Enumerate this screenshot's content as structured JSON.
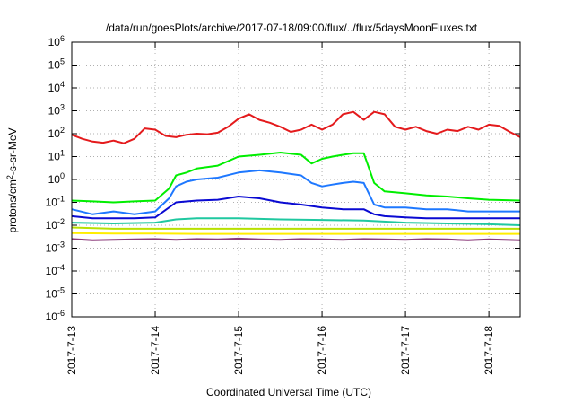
{
  "chart_data": {
    "type": "line",
    "title": "/data/run/goesPlots/archive/2017-07-18/09:00/flux/../flux/5daysMoonFluxes.txt",
    "xlabel": "Coordinated Universal Time (UTC)",
    "ylabel_base": "protons/cm",
    "ylabel_exp": "2",
    "ylabel_rest": "-s-sr-MeV",
    "yscale": "log",
    "ylim": [
      1e-06,
      1000000.0
    ],
    "xlim": [
      "2017-07-13T00:00",
      "2017-07-18T09:00"
    ],
    "grid": true,
    "y_ticks": [
      {
        "exp": "-6",
        "value": 1e-06
      },
      {
        "exp": "-5",
        "value": 1e-05
      },
      {
        "exp": "-4",
        "value": 0.0001
      },
      {
        "exp": "-3",
        "value": 0.001
      },
      {
        "exp": "-2",
        "value": 0.01
      },
      {
        "exp": "-1",
        "value": 0.1
      },
      {
        "exp": "0",
        "value": 1
      },
      {
        "exp": "1",
        "value": 10
      },
      {
        "exp": "2",
        "value": 100
      },
      {
        "exp": "3",
        "value": 1000
      },
      {
        "exp": "4",
        "value": 10000.0
      },
      {
        "exp": "5",
        "value": 100000.0
      },
      {
        "exp": "6",
        "value": 1000000.0
      }
    ],
    "y_tick_base": "10",
    "x_ticks": [
      {
        "label": "2017-7-13",
        "value": "2017-07-13T00:00"
      },
      {
        "label": "2017-7-14",
        "value": "2017-07-14T00:00"
      },
      {
        "label": "2017-7-15",
        "value": "2017-07-15T00:00"
      },
      {
        "label": "2017-7-16",
        "value": "2017-07-16T00:00"
      },
      {
        "label": "2017-7-17",
        "value": "2017-07-17T00:00"
      },
      {
        "label": "2017-7-18",
        "value": "2017-07-18T00:00"
      }
    ],
    "series": [
      {
        "color": "#e41a1c",
        "x": [
          "2017-07-13T00:00",
          "2017-07-13T03:00",
          "2017-07-13T06:00",
          "2017-07-13T09:00",
          "2017-07-13T12:00",
          "2017-07-13T15:00",
          "2017-07-13T18:00",
          "2017-07-13T21:00",
          "2017-07-14T00:00",
          "2017-07-14T03:00",
          "2017-07-14T06:00",
          "2017-07-14T09:00",
          "2017-07-14T12:00",
          "2017-07-14T15:00",
          "2017-07-14T18:00",
          "2017-07-14T21:00",
          "2017-07-15T00:00",
          "2017-07-15T03:00",
          "2017-07-15T06:00",
          "2017-07-15T09:00",
          "2017-07-15T12:00",
          "2017-07-15T15:00",
          "2017-07-15T18:00",
          "2017-07-15T21:00",
          "2017-07-16T00:00",
          "2017-07-16T03:00",
          "2017-07-16T06:00",
          "2017-07-16T09:00",
          "2017-07-16T12:00",
          "2017-07-16T15:00",
          "2017-07-16T18:00",
          "2017-07-16T21:00",
          "2017-07-17T00:00",
          "2017-07-17T03:00",
          "2017-07-17T06:00",
          "2017-07-17T09:00",
          "2017-07-17T12:00",
          "2017-07-17T15:00",
          "2017-07-17T18:00",
          "2017-07-17T21:00",
          "2017-07-18T00:00",
          "2017-07-18T03:00",
          "2017-07-18T06:00",
          "2017-07-18T09:00"
        ],
        "y": [
          90,
          60,
          45,
          40,
          50,
          38,
          60,
          170,
          150,
          80,
          70,
          90,
          100,
          95,
          110,
          200,
          450,
          700,
          400,
          300,
          200,
          120,
          150,
          250,
          150,
          250,
          700,
          900,
          400,
          900,
          700,
          200,
          150,
          200,
          130,
          100,
          150,
          130,
          200,
          150,
          250,
          220,
          120,
          70
        ]
      },
      {
        "color": "#00ee00",
        "x": [
          "2017-07-13T00:00",
          "2017-07-13T06:00",
          "2017-07-13T12:00",
          "2017-07-13T18:00",
          "2017-07-14T00:00",
          "2017-07-14T04:00",
          "2017-07-14T06:00",
          "2017-07-14T09:00",
          "2017-07-14T12:00",
          "2017-07-14T18:00",
          "2017-07-15T00:00",
          "2017-07-15T06:00",
          "2017-07-15T12:00",
          "2017-07-15T18:00",
          "2017-07-15T21:00",
          "2017-07-16T00:00",
          "2017-07-16T03:00",
          "2017-07-16T06:00",
          "2017-07-16T09:00",
          "2017-07-16T12:00",
          "2017-07-16T15:00",
          "2017-07-16T18:00",
          "2017-07-17T00:00",
          "2017-07-17T06:00",
          "2017-07-17T12:00",
          "2017-07-17T18:00",
          "2017-07-18T00:00",
          "2017-07-18T09:00"
        ],
        "y": [
          0.12,
          0.11,
          0.1,
          0.11,
          0.12,
          0.4,
          1.5,
          2,
          3,
          4,
          10,
          12,
          15,
          12,
          5,
          8,
          10,
          12,
          14,
          14,
          0.7,
          0.3,
          0.25,
          0.2,
          0.18,
          0.15,
          0.13,
          0.12
        ]
      },
      {
        "color": "#1e78ff",
        "x": [
          "2017-07-13T00:00",
          "2017-07-13T06:00",
          "2017-07-13T12:00",
          "2017-07-13T18:00",
          "2017-07-14T00:00",
          "2017-07-14T04:00",
          "2017-07-14T06:00",
          "2017-07-14T09:00",
          "2017-07-14T12:00",
          "2017-07-14T18:00",
          "2017-07-15T00:00",
          "2017-07-15T06:00",
          "2017-07-15T12:00",
          "2017-07-15T18:00",
          "2017-07-15T21:00",
          "2017-07-16T00:00",
          "2017-07-16T03:00",
          "2017-07-16T06:00",
          "2017-07-16T09:00",
          "2017-07-16T12:00",
          "2017-07-16T15:00",
          "2017-07-16T18:00",
          "2017-07-17T00:00",
          "2017-07-17T06:00",
          "2017-07-17T12:00",
          "2017-07-17T18:00",
          "2017-07-18T00:00",
          "2017-07-18T09:00"
        ],
        "y": [
          0.05,
          0.03,
          0.04,
          0.03,
          0.04,
          0.15,
          0.5,
          0.8,
          1,
          1.2,
          2,
          2.5,
          2,
          1.5,
          0.7,
          0.5,
          0.6,
          0.7,
          0.8,
          0.7,
          0.08,
          0.06,
          0.06,
          0.05,
          0.05,
          0.04,
          0.04,
          0.04
        ]
      },
      {
        "color": "#0a0ad2",
        "x": [
          "2017-07-13T00:00",
          "2017-07-13T06:00",
          "2017-07-13T12:00",
          "2017-07-13T18:00",
          "2017-07-14T00:00",
          "2017-07-14T04:00",
          "2017-07-14T06:00",
          "2017-07-14T12:00",
          "2017-07-14T18:00",
          "2017-07-15T00:00",
          "2017-07-15T06:00",
          "2017-07-15T12:00",
          "2017-07-15T18:00",
          "2017-07-16T00:00",
          "2017-07-16T06:00",
          "2017-07-16T12:00",
          "2017-07-16T15:00",
          "2017-07-16T18:00",
          "2017-07-17T00:00",
          "2017-07-17T06:00",
          "2017-07-17T12:00",
          "2017-07-17T18:00",
          "2017-07-18T00:00",
          "2017-07-18T09:00"
        ],
        "y": [
          0.025,
          0.02,
          0.02,
          0.02,
          0.022,
          0.06,
          0.1,
          0.12,
          0.13,
          0.18,
          0.15,
          0.1,
          0.08,
          0.06,
          0.05,
          0.05,
          0.03,
          0.025,
          0.022,
          0.02,
          0.02,
          0.02,
          0.02,
          0.02
        ]
      },
      {
        "color": "#1fc8a0",
        "x": [
          "2017-07-13T00:00",
          "2017-07-13T12:00",
          "2017-07-14T00:00",
          "2017-07-14T06:00",
          "2017-07-14T12:00",
          "2017-07-15T00:00",
          "2017-07-15T12:00",
          "2017-07-16T00:00",
          "2017-07-16T12:00",
          "2017-07-17T00:00",
          "2017-07-17T12:00",
          "2017-07-18T00:00",
          "2017-07-18T09:00"
        ],
        "y": [
          0.013,
          0.012,
          0.013,
          0.018,
          0.02,
          0.02,
          0.018,
          0.017,
          0.016,
          0.013,
          0.012,
          0.011,
          0.01
        ]
      },
      {
        "color": "#b8e000",
        "x": [
          "2017-07-13T00:00",
          "2017-07-13T12:00",
          "2017-07-14T00:00",
          "2017-07-14T12:00",
          "2017-07-15T00:00",
          "2017-07-15T12:00",
          "2017-07-16T00:00",
          "2017-07-16T12:00",
          "2017-07-17T00:00",
          "2017-07-17T12:00",
          "2017-07-18T00:00",
          "2017-07-18T09:00"
        ],
        "y": [
          0.008,
          0.007,
          0.007,
          0.007,
          0.007,
          0.007,
          0.007,
          0.007,
          0.007,
          0.007,
          0.007,
          0.007
        ]
      },
      {
        "color": "#ffee00",
        "x": [
          "2017-07-13T00:00",
          "2017-07-13T12:00",
          "2017-07-14T00:00",
          "2017-07-14T12:00",
          "2017-07-15T00:00",
          "2017-07-15T12:00",
          "2017-07-16T00:00",
          "2017-07-16T12:00",
          "2017-07-17T00:00",
          "2017-07-17T12:00",
          "2017-07-18T00:00",
          "2017-07-18T09:00"
        ],
        "y": [
          0.0045,
          0.0043,
          0.0043,
          0.0042,
          0.0042,
          0.0042,
          0.0042,
          0.0042,
          0.0042,
          0.0042,
          0.0042,
          0.0042
        ]
      },
      {
        "color": "#8b3a7a",
        "x": [
          "2017-07-13T00:00",
          "2017-07-13T06:00",
          "2017-07-13T12:00",
          "2017-07-13T18:00",
          "2017-07-14T00:00",
          "2017-07-14T06:00",
          "2017-07-14T12:00",
          "2017-07-14T18:00",
          "2017-07-15T00:00",
          "2017-07-15T06:00",
          "2017-07-15T12:00",
          "2017-07-15T18:00",
          "2017-07-16T00:00",
          "2017-07-16T06:00",
          "2017-07-16T12:00",
          "2017-07-16T18:00",
          "2017-07-17T00:00",
          "2017-07-17T06:00",
          "2017-07-17T12:00",
          "2017-07-17T18:00",
          "2017-07-18T00:00",
          "2017-07-18T09:00"
        ],
        "y": [
          0.0025,
          0.0022,
          0.0023,
          0.0024,
          0.0025,
          0.0023,
          0.0025,
          0.0024,
          0.0026,
          0.0024,
          0.0023,
          0.0025,
          0.0024,
          0.0023,
          0.0025,
          0.0024,
          0.0023,
          0.0025,
          0.0024,
          0.0022,
          0.0024,
          0.0022
        ]
      }
    ]
  }
}
